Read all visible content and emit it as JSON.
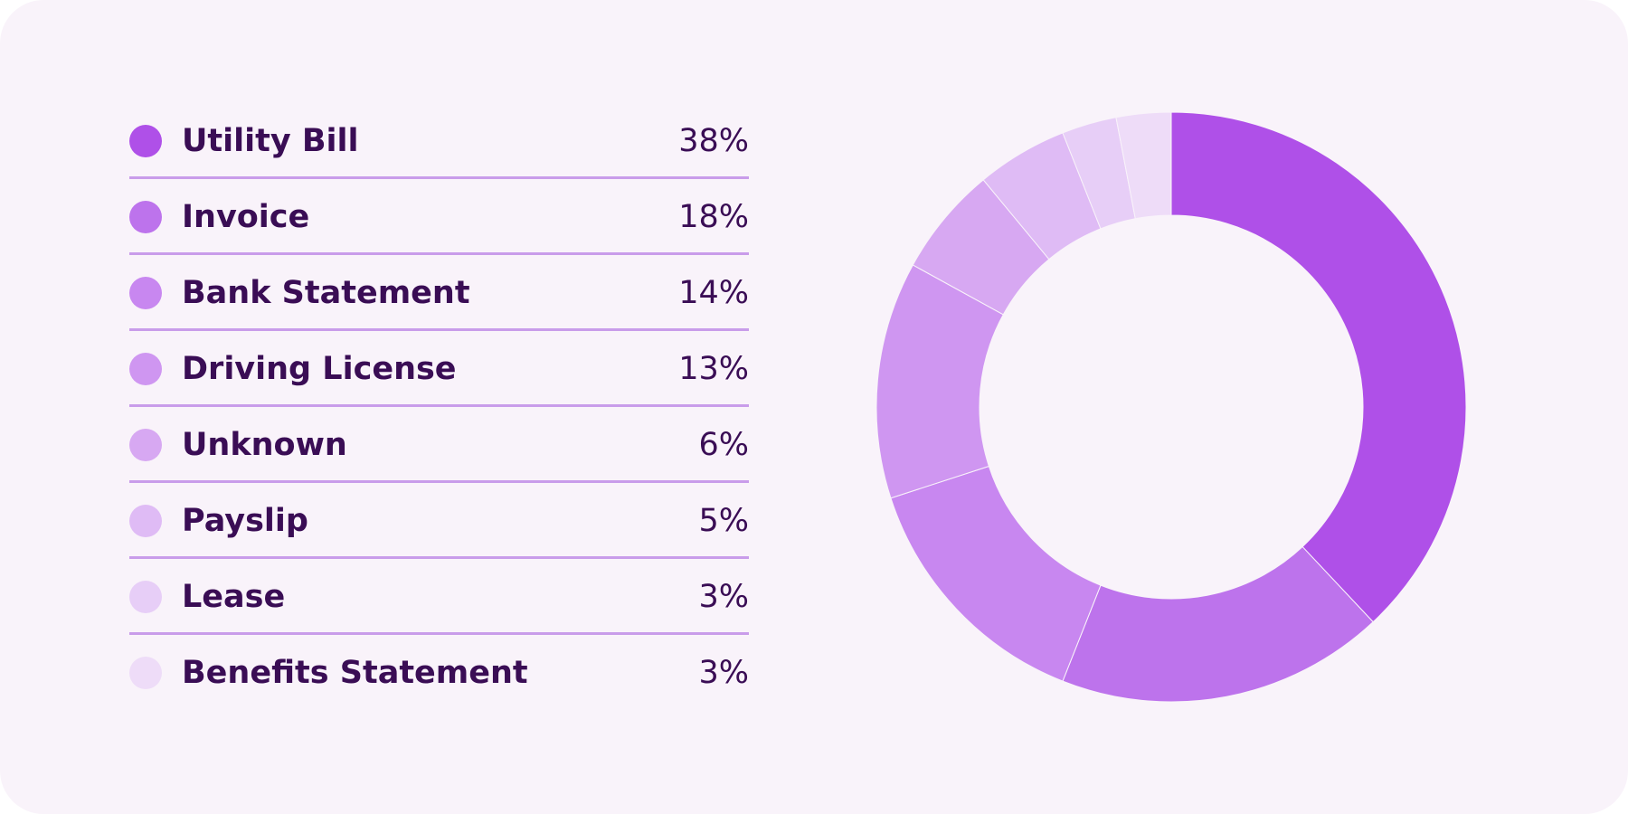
{
  "chart_data": {
    "type": "pie",
    "title": "",
    "categories": [
      "Utility Bill",
      "Invoice",
      "Bank Statement",
      "Driving License",
      "Unknown",
      "Payslip",
      "Lease",
      "Benefits Statement"
    ],
    "values": [
      38,
      18,
      14,
      13,
      6,
      5,
      3,
      3
    ],
    "labels": [
      "38%",
      "18%",
      "14%",
      "13%",
      "6%",
      "5%",
      "3%",
      "3%"
    ],
    "colors": [
      "#af50e8",
      "#bd73ec",
      "#c887f0",
      "#cf96f1",
      "#d7a8f2",
      "#dfbbf5",
      "#e7cef7",
      "#eedcf8"
    ],
    "donut": true,
    "legend_position": "left",
    "start": "top",
    "direction": "clockwise"
  }
}
